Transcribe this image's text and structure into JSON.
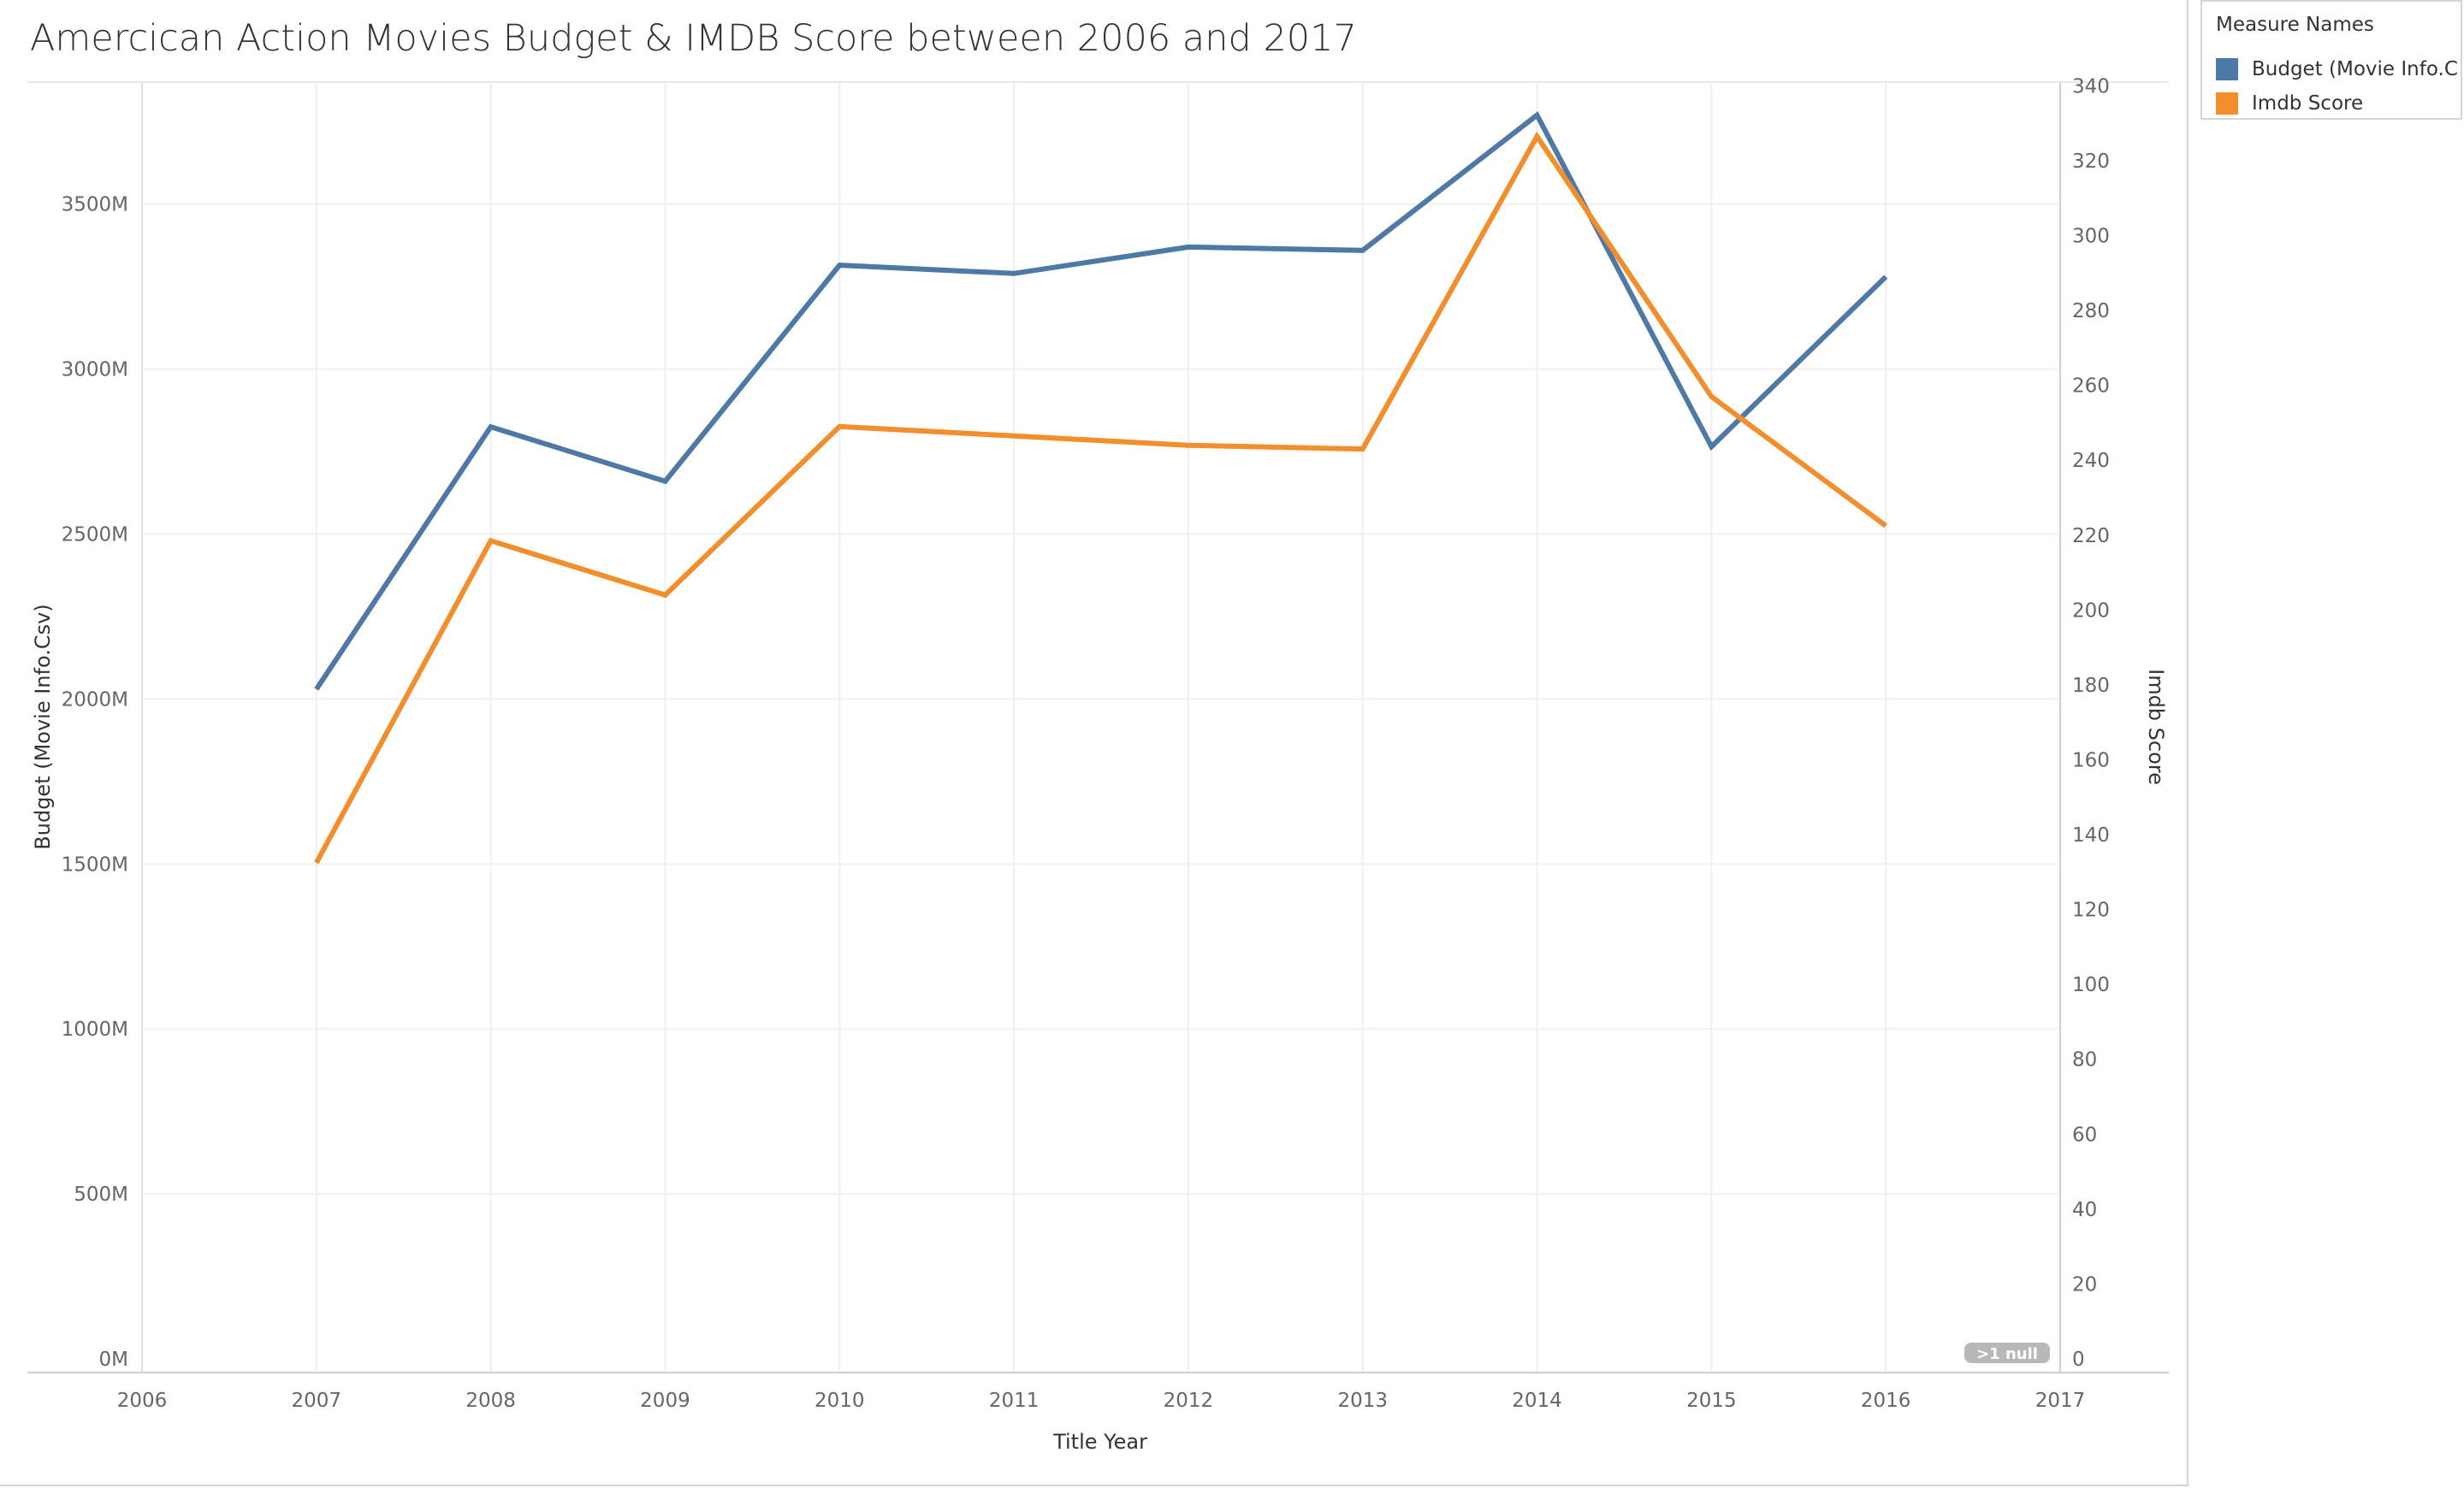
{
  "chart_data": {
    "type": "line",
    "title": "Amercican Action Movies Budget & IMDB Score between 2006 and 2017",
    "xlabel": "Title Year",
    "ylabel": "Budget (Movie Info.Csv)",
    "y2label": "Imdb Score",
    "x": [
      2007,
      2008,
      2009,
      2010,
      2011,
      2012,
      2013,
      2014,
      2015,
      2016
    ],
    "x_ticks": [
      "2006",
      "2007",
      "2008",
      "2009",
      "2010",
      "2011",
      "2012",
      "2013",
      "2014",
      "2015",
      "2016",
      "2017"
    ],
    "xlim": [
      2006,
      2017
    ],
    "ylim": [
      0,
      3870
    ],
    "y2lim": [
      0,
      341
    ],
    "y_ticks": [
      {
        "value": 0,
        "label": "0M"
      },
      {
        "value": 500,
        "label": "500M"
      },
      {
        "value": 1000,
        "label": "1000M"
      },
      {
        "value": 1500,
        "label": "1500M"
      },
      {
        "value": 2000,
        "label": "2000M"
      },
      {
        "value": 2500,
        "label": "2500M"
      },
      {
        "value": 3000,
        "label": "3000M"
      },
      {
        "value": 3500,
        "label": "3500M"
      }
    ],
    "y2_ticks": [
      {
        "value": 0,
        "label": "0"
      },
      {
        "value": 20,
        "label": "20"
      },
      {
        "value": 40,
        "label": "40"
      },
      {
        "value": 60,
        "label": "60"
      },
      {
        "value": 80,
        "label": "80"
      },
      {
        "value": 100,
        "label": "100"
      },
      {
        "value": 120,
        "label": "120"
      },
      {
        "value": 140,
        "label": "140"
      },
      {
        "value": 160,
        "label": "160"
      },
      {
        "value": 180,
        "label": "180"
      },
      {
        "value": 200,
        "label": "200"
      },
      {
        "value": 220,
        "label": "220"
      },
      {
        "value": 240,
        "label": "240"
      },
      {
        "value": 260,
        "label": "260"
      },
      {
        "value": 280,
        "label": "280"
      },
      {
        "value": 300,
        "label": "300"
      },
      {
        "value": 320,
        "label": "320"
      },
      {
        "value": 340,
        "label": "340"
      }
    ],
    "series": [
      {
        "name": "Budget (Movie Info.C..",
        "axis": "left",
        "color": "#4e79a7",
        "values": [
          2030,
          2825,
          2660,
          3315,
          3290,
          3370,
          3360,
          3770,
          2765,
          3280
        ]
      },
      {
        "name": "Imdb Score",
        "axis": "right",
        "color": "#f28e2b",
        "values": [
          132.5,
          218.5,
          204.0,
          249.0,
          246.5,
          244.0,
          243.0,
          326.5,
          257.0,
          222.5
        ]
      }
    ],
    "null_indicator": ">1 null",
    "legend_title": "Measure Names",
    "legend_position": "top-right",
    "grid": true
  }
}
